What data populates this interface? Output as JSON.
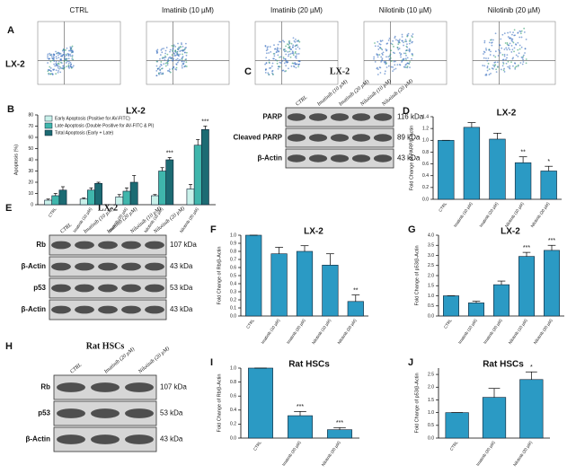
{
  "flow": {
    "label": "A",
    "cell_line": "LX-2",
    "conditions": [
      "CTRL",
      "Imatinib (10 µM)",
      "Imatinib (20 µM)",
      "Nilotinib (10 µM)",
      "Nilotinib (20 µM)"
    ]
  },
  "blots": [
    {
      "label": "C",
      "title": "LX-2",
      "lanes": [
        "CTRL",
        "Imatinib (10 µM)",
        "Imatinib (20 µM)",
        "Nilotinib (10 µM)",
        "Nilotinib (20 µM)"
      ],
      "rows": [
        {
          "name": "PARP",
          "kda": "116 kDa"
        },
        {
          "name": "Cleaved PARP",
          "kda": "89 kDa"
        },
        {
          "name": "β-Actin",
          "kda": "43 kDa"
        }
      ]
    },
    {
      "label": "E",
      "title": "LX-2",
      "lanes": [
        "CTRL",
        "Imatinib (10 µM)",
        "Imatinib (20 µM)",
        "Nilotinib (10 µM)",
        "Nilotinib (20 µM)"
      ],
      "rows": [
        {
          "name": "Rb",
          "kda": "107 kDa"
        },
        {
          "name": "β-Actin",
          "kda": "43 kDa"
        },
        {
          "name": "p53",
          "kda": "53 kDa"
        },
        {
          "name": "β-Actin",
          "kda": "43 kDa"
        }
      ]
    },
    {
      "label": "H",
      "title": "Rat HSCs",
      "lanes": [
        "CTRL",
        "Imatinib (20 µM)",
        "Nilotinib (20 µM)"
      ],
      "rows": [
        {
          "name": "Rb",
          "kda": "107 kDa"
        },
        {
          "name": "p53",
          "kda": "53 kDa"
        },
        {
          "name": "β-Actin",
          "kda": "43 kDa"
        }
      ]
    }
  ],
  "chart_data": [
    {
      "type": "bar",
      "label": "B",
      "title": "LX-2",
      "ylabel": "Apoptosis (%)",
      "categories": [
        "CTRL",
        "Imatinib (10 µM)",
        "Imatinib (20 µM)",
        "Nilotinib (10 µM)",
        "Nilotinib (20 µM)"
      ],
      "series": [
        {
          "name": "Early Apoptosis (Positive for AV-FITC)",
          "color": "#c9f1ea",
          "values": [
            4,
            5,
            7,
            8,
            14
          ],
          "errors": [
            1,
            1,
            2,
            1,
            4
          ]
        },
        {
          "name": "Late Apoptosis (Double Positive for AV-FITC & PI)",
          "color": "#3fb6ac",
          "values": [
            8,
            13,
            12,
            30,
            53
          ],
          "errors": [
            2,
            2,
            3,
            3,
            5
          ]
        },
        {
          "name": "Total Apoptosis (Early + Late)",
          "color": "#1c6b73",
          "values": [
            13,
            19,
            20,
            40,
            67
          ],
          "errors": [
            3,
            1,
            6,
            2,
            3
          ]
        }
      ],
      "annotations": [
        null,
        null,
        null,
        "***",
        "***"
      ],
      "ylim": [
        0,
        80
      ],
      "yticks": [
        0,
        10,
        20,
        30,
        40,
        50,
        60,
        70,
        80
      ]
    },
    {
      "type": "bar",
      "label": "D",
      "title": "LX-2",
      "ylabel": "Fold Change of PARP/β-Actin",
      "categories": [
        "CTRL",
        "Imatinib (10 µM)",
        "Imatinib (20 µM)",
        "Nilotinib (10 µM)",
        "Nilotinib (20 µM)"
      ],
      "values": [
        1.0,
        1.22,
        1.02,
        0.62,
        0.48
      ],
      "errors": [
        0,
        0.08,
        0.1,
        0.1,
        0.08
      ],
      "color": "#2b9ac4",
      "annotations": [
        null,
        null,
        null,
        "**",
        "*"
      ],
      "ylim": [
        0,
        1.4
      ],
      "yticks": [
        {
          "value": 0,
          "label": "0.0"
        },
        0.2,
        0.4,
        0.6,
        0.8,
        {
          "value": 1,
          "label": "1.0"
        },
        1.2,
        1.4
      ]
    },
    {
      "type": "bar",
      "label": "F",
      "title": "LX-2",
      "ylabel": "Fold Change of Rb/β-Actin",
      "categories": [
        "CTRL",
        "Imatinib (10 µM)",
        "Imatinib (20 µM)",
        "Nilotinib (10 µM)",
        "Nilotinib (20 µM)"
      ],
      "values": [
        1.0,
        0.77,
        0.8,
        0.63,
        0.18
      ],
      "errors": [
        0,
        0.08,
        0.07,
        0.14,
        0.08
      ],
      "color": "#2b9ac4",
      "annotations": [
        null,
        null,
        null,
        null,
        "**"
      ],
      "ylim": [
        0,
        1
      ],
      "yticks": [
        {
          "value": 0,
          "label": "0.0"
        },
        0.1,
        0.2,
        0.3,
        0.4,
        0.5,
        0.6,
        0.7,
        0.8,
        0.9,
        {
          "value": 1,
          "label": "1.0"
        }
      ]
    },
    {
      "type": "bar",
      "label": "G",
      "title": "LX-2",
      "ylabel": "Fold Change of p53/β-Actin",
      "categories": [
        "CTRL",
        "Imatinib (10 µM)",
        "Imatinib (20 µM)",
        "Nilotinib (10 µM)",
        "Nilotinib (20 µM)"
      ],
      "values": [
        1.0,
        0.65,
        1.55,
        2.95,
        3.25
      ],
      "errors": [
        0,
        0.08,
        0.18,
        0.2,
        0.25
      ],
      "color": "#2b9ac4",
      "annotations": [
        null,
        null,
        null,
        "***",
        "***"
      ],
      "ylim": [
        0,
        4
      ],
      "yticks": [
        {
          "value": 0,
          "label": "0.0"
        },
        0.5,
        {
          "value": 1,
          "label": "1.0"
        },
        1.5,
        {
          "value": 2,
          "label": "2.0"
        },
        2.5,
        {
          "value": 3,
          "label": "3.0"
        },
        3.5,
        {
          "value": 4,
          "label": "4.0"
        }
      ]
    },
    {
      "type": "bar",
      "label": "I",
      "title": "Rat HSCs",
      "ylabel": "Fold Change of Rb/β-Actin",
      "categories": [
        "CTRL",
        "Imatinib (20 µM)",
        "Nilotinib (20 µM)"
      ],
      "values": [
        1.0,
        0.32,
        0.12
      ],
      "errors": [
        0,
        0.06,
        0.03
      ],
      "color": "#2b9ac4",
      "annotations": [
        null,
        "***",
        "***"
      ],
      "ylim": [
        0,
        1
      ],
      "yticks": [
        {
          "value": 0,
          "label": "0.0"
        },
        0.2,
        0.4,
        0.6,
        0.8,
        {
          "value": 1,
          "label": "1.0"
        }
      ]
    },
    {
      "type": "bar",
      "label": "J",
      "title": "Rat HSCs",
      "ylabel": "Fold Change of p53/β-Actin",
      "categories": [
        "CTRL",
        "Imatinib (20 µM)",
        "Nilotinib (20 µM)"
      ],
      "values": [
        1.0,
        1.6,
        2.3
      ],
      "errors": [
        0,
        0.35,
        0.3
      ],
      "color": "#2b9ac4",
      "annotations": [
        null,
        null,
        "*"
      ],
      "ylim": [
        0,
        2.75
      ],
      "yticks": [
        {
          "value": 0,
          "label": "0.0"
        },
        0.5,
        {
          "value": 1,
          "label": "1.0"
        },
        1.5,
        {
          "value": 2,
          "label": "2.0"
        },
        2.5
      ]
    }
  ]
}
